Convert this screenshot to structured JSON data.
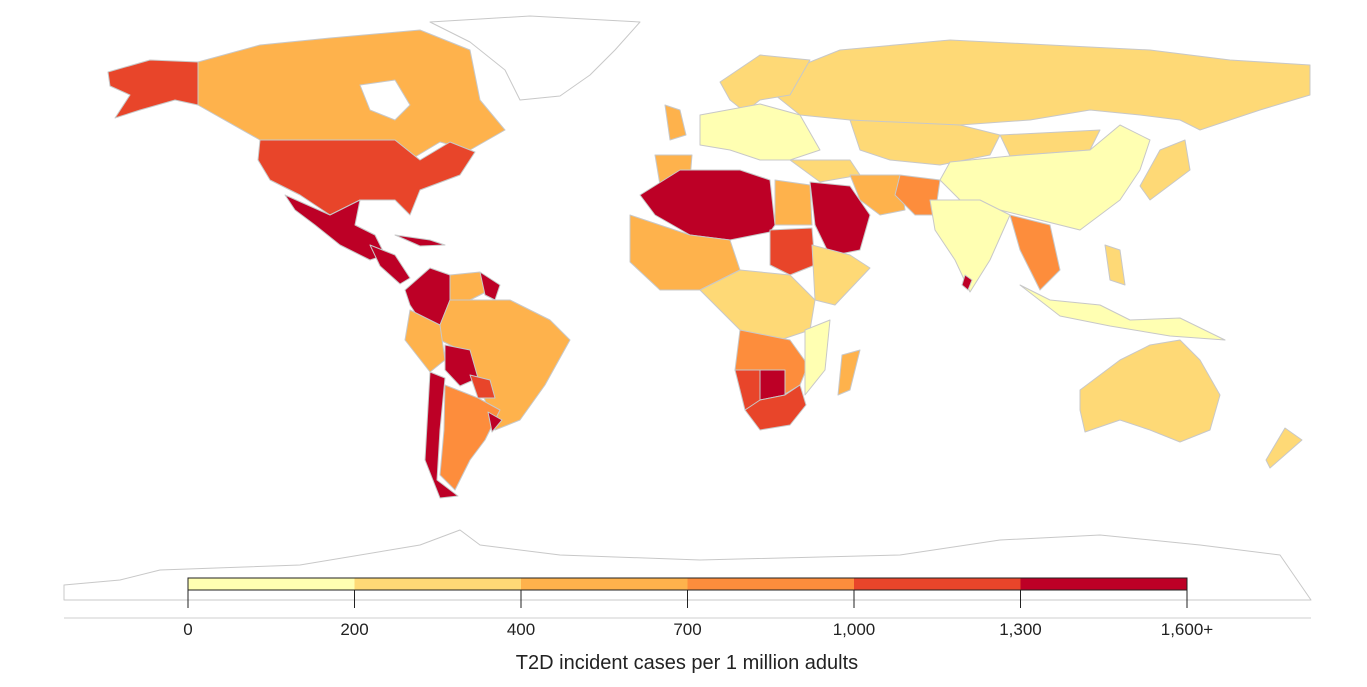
{
  "map": {
    "type": "choropleth",
    "projection": "world",
    "no_data_color": "#ffffff",
    "border_color": "#c8c8c8"
  },
  "legend": {
    "title": "T2D incident cases per 1 million adults",
    "ticks": [
      "0",
      "200",
      "400",
      "700",
      "1,000",
      "1,300",
      "1,600+"
    ],
    "bins": [
      {
        "range": [
          0,
          200
        ],
        "color": "#ffffb2"
      },
      {
        "range": [
          200,
          400
        ],
        "color": "#fed976"
      },
      {
        "range": [
          400,
          700
        ],
        "color": "#feb24c"
      },
      {
        "range": [
          700,
          1000
        ],
        "color": "#fd8d3c"
      },
      {
        "range": [
          1000,
          1300
        ],
        "color": "#e8452a"
      },
      {
        "range": [
          1300,
          1600
        ],
        "color": "#bd0026"
      }
    ]
  }
}
